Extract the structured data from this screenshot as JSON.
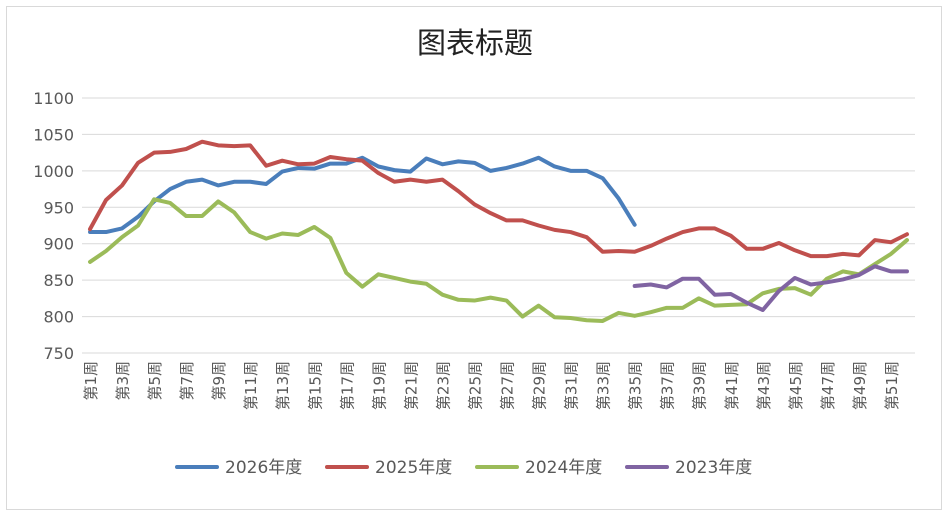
{
  "chart_data": {
    "type": "line",
    "title": "图表标题",
    "xlabel": "",
    "ylabel": "",
    "ylim": [
      750,
      1100
    ],
    "yticks": [
      750,
      800,
      850,
      900,
      950,
      1000,
      1050,
      1100
    ],
    "grid": true,
    "legend_position": "bottom",
    "categories": [
      "第1周",
      "第2周",
      "第3周",
      "第4周",
      "第5周",
      "第6周",
      "第7周",
      "第8周",
      "第9周",
      "第10周",
      "第11周",
      "第12周",
      "第13周",
      "第14周",
      "第15周",
      "第16周",
      "第17周",
      "第18周",
      "第19周",
      "第20周",
      "第21周",
      "第22周",
      "第23周",
      "第24周",
      "第25周",
      "第26周",
      "第27周",
      "第28周",
      "第29周",
      "第30周",
      "第31周",
      "第32周",
      "第33周",
      "第34周",
      "第35周",
      "第36周",
      "第37周",
      "第38周",
      "第39周",
      "第40周",
      "第41周",
      "第42周",
      "第43周",
      "第44周",
      "第45周",
      "第46周",
      "第47周",
      "第48周",
      "第49周",
      "第50周",
      "第51周",
      "第52周"
    ],
    "visible_category_labels": [
      "第1周",
      "第3周",
      "第5周",
      "第7周",
      "第9周",
      "第11周",
      "第13周",
      "第15周",
      "第17周",
      "第19周",
      "第21周",
      "第23周",
      "第25周",
      "第27周",
      "第29周",
      "第31周",
      "第33周",
      "第35周",
      "第37周",
      "第39周",
      "第41周",
      "第43周",
      "第45周",
      "第47周",
      "第49周",
      "第51周"
    ],
    "series": [
      {
        "name": "2026年度",
        "color": "#4a7ebb",
        "values": [
          916,
          916,
          921,
          937,
          958,
          975,
          985,
          988,
          980,
          985,
          985,
          982,
          999,
          1004,
          1003,
          1010,
          1010,
          1018,
          1006,
          1001,
          999,
          1017,
          1009,
          1013,
          1011,
          1000,
          1004,
          1010,
          1018,
          1006,
          1000,
          1000,
          990,
          962,
          926,
          null,
          null,
          null,
          null,
          null,
          null,
          null,
          null,
          null,
          null,
          null,
          null,
          null,
          null,
          null,
          null,
          null
        ]
      },
      {
        "name": "2025年度",
        "color": "#c0504d",
        "values": [
          920,
          960,
          980,
          1011,
          1025,
          1026,
          1030,
          1040,
          1035,
          1034,
          1035,
          1007,
          1014,
          1009,
          1010,
          1019,
          1016,
          1014,
          997,
          985,
          988,
          985,
          988,
          972,
          954,
          942,
          932,
          932,
          925,
          919,
          916,
          909,
          889,
          890,
          889,
          897,
          907,
          916,
          921,
          921,
          911,
          893,
          893,
          901,
          891,
          883,
          883,
          886,
          884,
          905,
          902,
          913
        ]
      },
      {
        "name": "2024年度",
        "color": "#9bbb59",
        "values": [
          875,
          890,
          909,
          925,
          961,
          956,
          938,
          938,
          958,
          943,
          916,
          907,
          914,
          912,
          923,
          908,
          860,
          841,
          858,
          853,
          848,
          845,
          830,
          823,
          822,
          826,
          822,
          800,
          815,
          799,
          798,
          795,
          794,
          805,
          801,
          806,
          812,
          812,
          825,
          815,
          816,
          817,
          832,
          838,
          839,
          830,
          852,
          862,
          858,
          872,
          886,
          905
        ]
      },
      {
        "name": "2023年度",
        "color": "#8064a2",
        "values": [
          null,
          null,
          null,
          null,
          null,
          null,
          null,
          null,
          null,
          null,
          null,
          null,
          null,
          null,
          null,
          null,
          null,
          null,
          null,
          null,
          null,
          null,
          null,
          null,
          null,
          null,
          null,
          null,
          null,
          null,
          null,
          null,
          null,
          null,
          842,
          844,
          840,
          852,
          852,
          830,
          831,
          819,
          809,
          835,
          853,
          844,
          847,
          851,
          857,
          869,
          862,
          862
        ]
      }
    ]
  }
}
